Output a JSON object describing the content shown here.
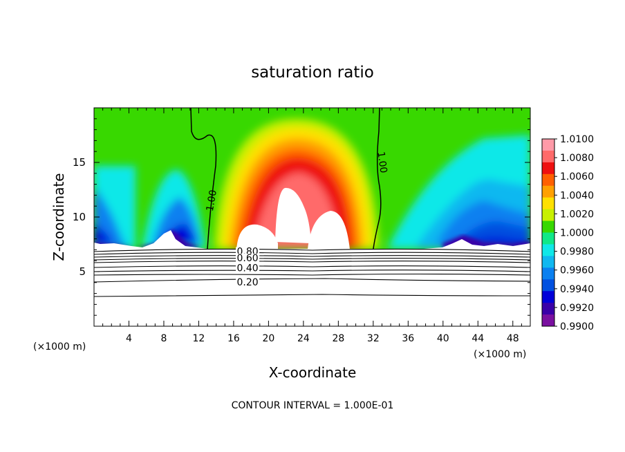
{
  "chart_data": {
    "type": "heatmap",
    "title": "saturation ratio",
    "xlabel": "X-coordinate",
    "ylabel": "Z-coordinate",
    "x_unit_left": "(×1000 m)",
    "x_unit_right": "(×1000 m)",
    "footer": "CONTOUR INTERVAL = 1.000E-01",
    "xlim": [
      0,
      50
    ],
    "ylim": [
      0,
      20
    ],
    "x_ticks": [
      4,
      8,
      12,
      16,
      20,
      24,
      28,
      32,
      36,
      40,
      44,
      48
    ],
    "y_ticks": [
      5,
      10,
      15
    ],
    "colorbar": {
      "levels": [
        "1.0100",
        "1.0080",
        "1.0060",
        "1.0040",
        "1.0020",
        "1.0000",
        "0.9980",
        "0.9960",
        "0.9940",
        "0.9920",
        "0.9900"
      ],
      "colors": [
        "#ff9aa8",
        "#ff6a6a",
        "#ee1010",
        "#ff6000",
        "#ffa000",
        "#ffe000",
        "#c8f000",
        "#38d800",
        "#10e888",
        "#10e8e8",
        "#10b8f0",
        "#0a80f0",
        "#0050e0",
        "#0000d8",
        "#3a00a8",
        "#7a10a0"
      ]
    },
    "contour_labels": [
      {
        "text": "1.00",
        "x": 13.5,
        "y": 11.5,
        "rotate": -80
      },
      {
        "text": "1.00",
        "x": 33.0,
        "y": 15.0,
        "rotate": 82
      },
      {
        "text": "0.80",
        "x": 17.6,
        "y": 6.8,
        "rotate": 0
      },
      {
        "text": "0.60",
        "x": 17.6,
        "y": 6.2,
        "rotate": 0
      },
      {
        "text": "0.40",
        "x": 17.6,
        "y": 5.3,
        "rotate": 0
      },
      {
        "text": "0.20",
        "x": 17.6,
        "y": 4.0,
        "rotate": 0
      }
    ],
    "grid": false
  }
}
